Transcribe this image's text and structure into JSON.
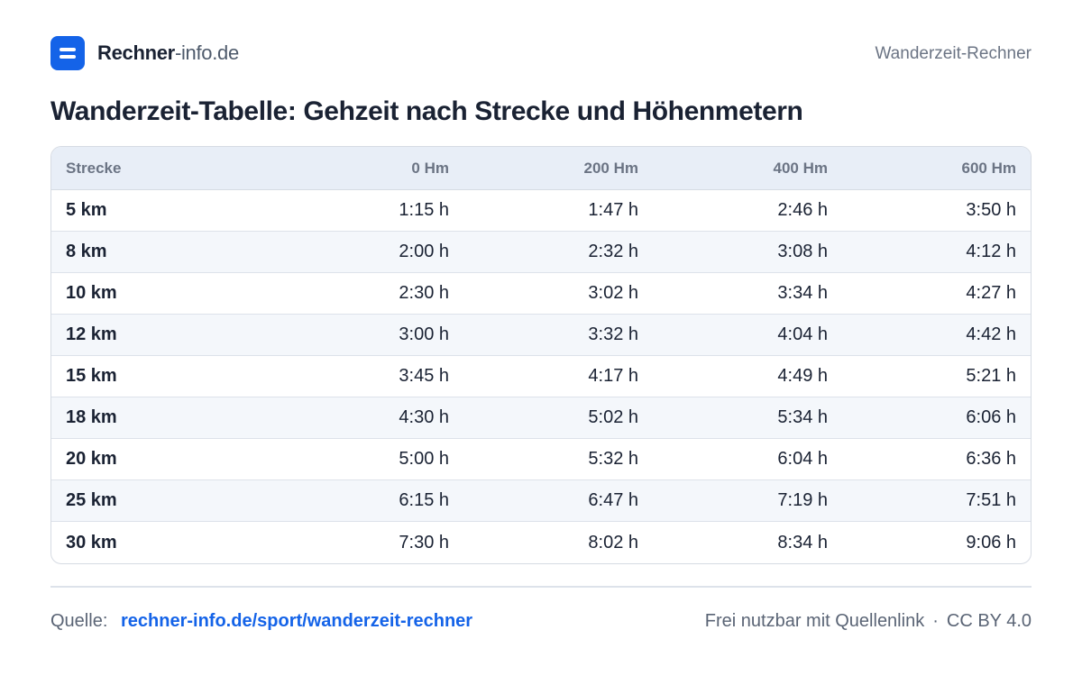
{
  "header": {
    "brand_strong": "Rechner",
    "brand_light": "-info.de",
    "tool_name": "Wanderzeit-Rechner"
  },
  "title": "Wanderzeit-Tabelle:  Gehzeit nach Strecke und Höhenmetern",
  "table": {
    "columns": [
      "Strecke",
      "0 Hm",
      "200 Hm",
      "400 Hm",
      "600 Hm"
    ],
    "rows": [
      [
        "5 km",
        "1:15 h",
        "1:47 h",
        "2:46 h",
        "3:50 h"
      ],
      [
        "8 km",
        "2:00 h",
        "2:32 h",
        "3:08 h",
        "4:12 h"
      ],
      [
        "10 km",
        "2:30 h",
        "3:02 h",
        "3:34 h",
        "4:27 h"
      ],
      [
        "12 km",
        "3:00 h",
        "3:32 h",
        "4:04 h",
        "4:42 h"
      ],
      [
        "15 km",
        "3:45 h",
        "4:17 h",
        "4:49 h",
        "5:21 h"
      ],
      [
        "18 km",
        "4:30 h",
        "5:02 h",
        "5:34 h",
        "6:06 h"
      ],
      [
        "20 km",
        "5:00 h",
        "5:32 h",
        "6:04 h",
        "6:36 h"
      ],
      [
        "25 km",
        "6:15 h",
        "6:47 h",
        "7:19 h",
        "7:51 h"
      ],
      [
        "30 km",
        "7:30 h",
        "8:02 h",
        "8:34 h",
        "9:06 h"
      ]
    ]
  },
  "footer": {
    "source_label": "Quelle:",
    "source_link": "rechner-info.de/sport/wanderzeit-rechner",
    "license_text": "Frei nutzbar mit Quellenlink",
    "separator": "·",
    "license_name": "CC BY 4.0"
  },
  "colors": {
    "accent": "#1463e8",
    "text": "#1a2233",
    "muted": "#6b7484",
    "header_bg": "#e8eef7",
    "row_alt_bg": "#f4f7fb"
  }
}
